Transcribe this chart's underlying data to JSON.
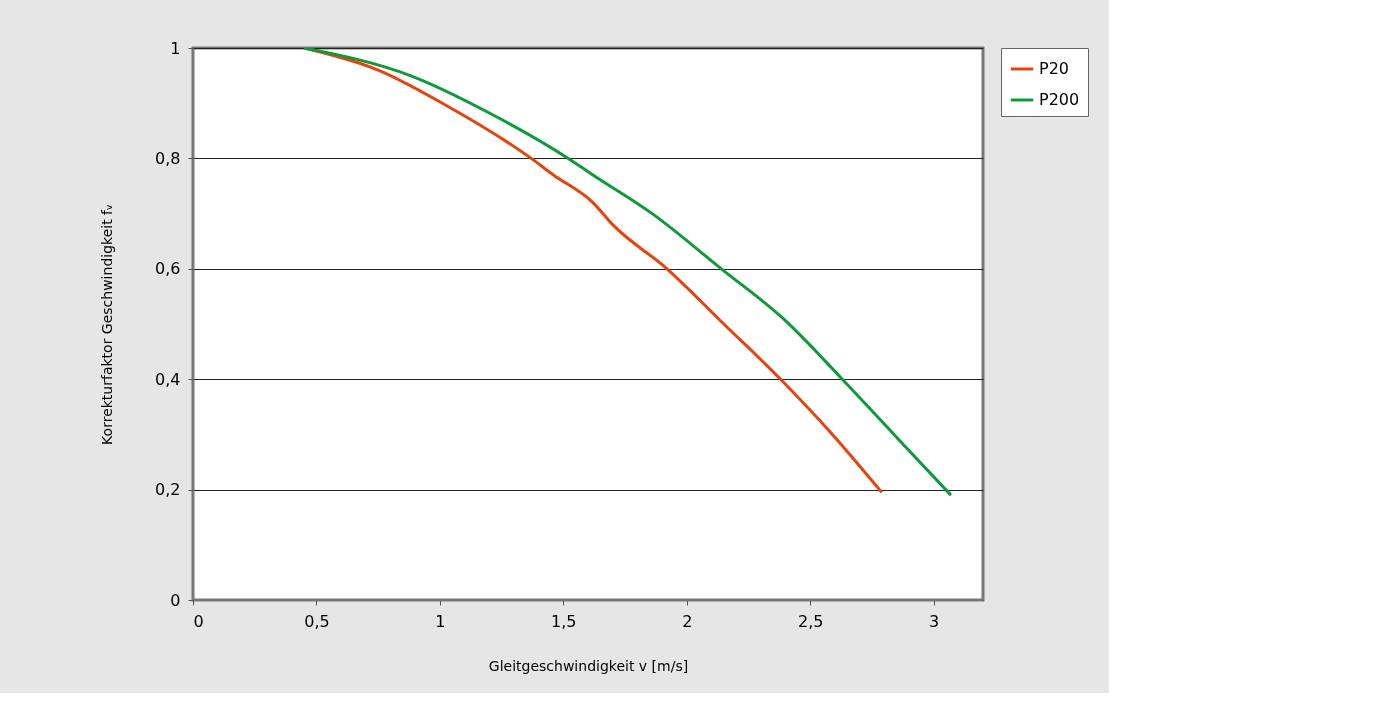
{
  "chart_data": {
    "type": "line",
    "xlabel": "Gleitgeschwindigkeit v [m/s]",
    "ylabel": "Korrekturfaktor Geschwindigkeit fᵥ",
    "xlim": [
      0,
      3.2
    ],
    "ylim": [
      0,
      1
    ],
    "xticks": [
      0,
      {
        "value": 0.5,
        "label": "0,5"
      },
      1,
      {
        "value": 1.5,
        "label": "1,5"
      },
      2,
      {
        "value": 2.5,
        "label": "2,5"
      },
      3
    ],
    "yticks": [
      0,
      {
        "value": 0.2,
        "label": "0,2"
      },
      {
        "value": 0.4,
        "label": "0,4"
      },
      {
        "value": 0.6,
        "label": "0,6"
      },
      {
        "value": 0.8,
        "label": "0,8"
      },
      1
    ],
    "grid": "y",
    "legend": "right",
    "marker": "none",
    "line_style": "solid",
    "series": [
      {
        "name": "P20",
        "color": "#e8430c",
        "x": [
          0.45,
          0.75,
          1.01,
          1.37,
          1.46,
          1.62,
          1.7,
          1.92,
          2.15,
          2.38,
          2.59,
          2.79
        ],
        "values": [
          1.0,
          0.96,
          0.9,
          0.8,
          0.77,
          0.72,
          0.68,
          0.6,
          0.5,
          0.4,
          0.3,
          0.195
        ]
      },
      {
        "name": "P200",
        "color": "#0c9a3a",
        "x": [
          0.45,
          0.88,
          1.21,
          1.52,
          1.62,
          1.86,
          2.14,
          2.39,
          2.63,
          2.86,
          3.07
        ],
        "values": [
          1.0,
          0.95,
          0.88,
          0.8,
          0.77,
          0.7,
          0.6,
          0.51,
          0.4,
          0.29,
          0.19
        ]
      }
    ]
  }
}
